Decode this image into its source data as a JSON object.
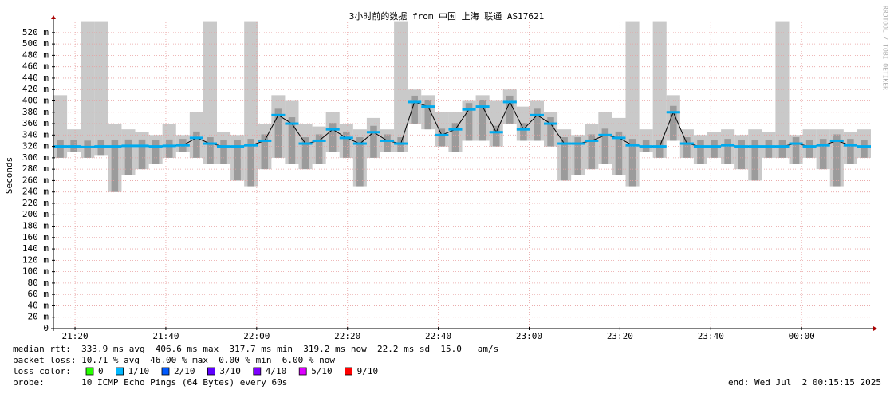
{
  "chart_data": {
    "type": "smoke",
    "title": "3小时前的数据 from 中国 上海 联通 AS17621",
    "y_label": "Seconds",
    "watermark": "RRDTOOL / TOBI OETIKER",
    "xlim": [
      1275.25,
      1455.25
    ],
    "xticks": [
      {
        "value": 1280,
        "label": "21:20"
      },
      {
        "value": 1300,
        "label": "21:40"
      },
      {
        "value": 1320,
        "label": "22:00"
      },
      {
        "value": 1340,
        "label": "22:20"
      },
      {
        "value": 1360,
        "label": "22:40"
      },
      {
        "value": 1380,
        "label": "23:00"
      },
      {
        "value": 1400,
        "label": "23:20"
      },
      {
        "value": 1420,
        "label": "23:40"
      },
      {
        "value": 1440,
        "label": "00:00"
      }
    ],
    "ylim": [
      0,
      538
    ],
    "yticks": [
      0,
      {
        "value": 20,
        "label": "20 m"
      },
      {
        "value": 40,
        "label": "40 m"
      },
      {
        "value": 60,
        "label": "60 m"
      },
      {
        "value": 80,
        "label": "80 m"
      },
      {
        "value": 100,
        "label": "100 m"
      },
      {
        "value": 120,
        "label": "120 m"
      },
      {
        "value": 140,
        "label": "140 m"
      },
      {
        "value": 160,
        "label": "160 m"
      },
      {
        "value": 180,
        "label": "180 m"
      },
      {
        "value": 200,
        "label": "200 m"
      },
      {
        "value": 220,
        "label": "220 m"
      },
      {
        "value": 240,
        "label": "240 m"
      },
      {
        "value": 260,
        "label": "260 m"
      },
      {
        "value": 280,
        "label": "280 m"
      },
      {
        "value": 300,
        "label": "300 m"
      },
      {
        "value": 320,
        "label": "320 m"
      },
      {
        "value": 340,
        "label": "340 m"
      },
      {
        "value": 360,
        "label": "360 m"
      },
      {
        "value": 380,
        "label": "380 m"
      },
      {
        "value": 400,
        "label": "400 m"
      },
      {
        "value": 420,
        "label": "420 m"
      },
      {
        "value": 440,
        "label": "440 m"
      },
      {
        "value": 460,
        "label": "460 m"
      },
      {
        "value": 480,
        "label": "480 m"
      },
      {
        "value": 500,
        "label": "500 m"
      },
      {
        "value": 520,
        "label": "520 m"
      }
    ],
    "grid": true,
    "x": [
      1276.75,
      1279.75,
      1282.75,
      1285.75,
      1288.75,
      1291.75,
      1294.75,
      1297.75,
      1300.75,
      1303.75,
      1306.75,
      1309.75,
      1312.75,
      1315.75,
      1318.75,
      1321.75,
      1324.75,
      1327.75,
      1330.75,
      1333.75,
      1336.75,
      1339.75,
      1342.75,
      1345.75,
      1348.75,
      1351.75,
      1354.75,
      1357.75,
      1360.75,
      1363.75,
      1366.75,
      1369.75,
      1372.75,
      1375.75,
      1378.75,
      1381.75,
      1384.75,
      1387.75,
      1390.75,
      1393.75,
      1396.75,
      1399.75,
      1402.75,
      1405.75,
      1408.75,
      1411.75,
      1414.75,
      1417.75,
      1420.75,
      1423.75,
      1426.75,
      1429.75,
      1432.75,
      1435.75,
      1438.75,
      1441.75,
      1444.75,
      1447.75,
      1450.75,
      1453.75
    ],
    "series": [
      {
        "name": "median",
        "color": "#00aaee",
        "values": [
          320,
          320,
          319,
          320,
          320,
          321,
          321,
          320,
          321,
          322,
          335,
          325,
          320,
          320,
          322,
          330,
          375,
          360,
          325,
          330,
          350,
          335,
          325,
          345,
          330,
          325,
          398,
          390,
          340,
          350,
          385,
          390,
          345,
          398,
          350,
          375,
          360,
          325,
          325,
          330,
          340,
          335,
          322,
          320,
          320,
          380,
          325,
          320,
          320,
          322,
          320,
          320,
          320,
          320,
          325,
          320,
          322,
          330,
          322,
          320
        ]
      },
      {
        "name": "smoke min",
        "color": "#888888",
        "values": [
          300,
          310,
          300,
          305,
          240,
          270,
          280,
          290,
          300,
          310,
          300,
          290,
          290,
          260,
          250,
          280,
          300,
          290,
          280,
          290,
          310,
          300,
          250,
          300,
          310,
          310,
          360,
          350,
          320,
          310,
          330,
          330,
          320,
          360,
          330,
          330,
          320,
          260,
          270,
          280,
          290,
          270,
          250,
          310,
          300,
          330,
          300,
          290,
          300,
          290,
          280,
          260,
          300,
          300,
          290,
          300,
          280,
          250,
          290,
          300
        ]
      },
      {
        "name": "smoke max",
        "color": "#bbbbbb",
        "values": [
          410,
          350,
          540,
          540,
          360,
          350,
          345,
          340,
          360,
          340,
          380,
          540,
          345,
          340,
          540,
          360,
          410,
          400,
          360,
          355,
          380,
          360,
          350,
          370,
          350,
          540,
          420,
          410,
          380,
          380,
          400,
          410,
          400,
          420,
          390,
          400,
          380,
          350,
          340,
          360,
          380,
          370,
          540,
          350,
          540,
          410,
          350,
          340,
          345,
          350,
          340,
          350,
          345,
          540,
          340,
          350,
          350,
          350,
          345,
          350
        ]
      }
    ],
    "stats": [
      "median rtt:  333.9 ms avg  406.6 ms max  317.7 ms min  319.2 ms now  22.2 ms sd  15.0   am/s",
      "packet loss: 10.71 % avg  46.00 % max  0.00 % min  6.00 % now"
    ],
    "loss_label": "loss color:",
    "loss_colors": [
      {
        "label": "0",
        "color": "#26ff00"
      },
      {
        "label": "1/10",
        "color": "#00b8ff"
      },
      {
        "label": "2/10",
        "color": "#0059ff"
      },
      {
        "label": "3/10",
        "color": "#5e00ff"
      },
      {
        "label": "4/10",
        "color": "#7e00ff"
      },
      {
        "label": "5/10",
        "color": "#dd00ff"
      },
      {
        "label": "9/10",
        "color": "#ff0000"
      }
    ],
    "probe": "probe:       10 ICMP Echo Pings (64 Bytes) every 60s",
    "end": "end: Wed Jul  2 00:15:15 2025"
  }
}
